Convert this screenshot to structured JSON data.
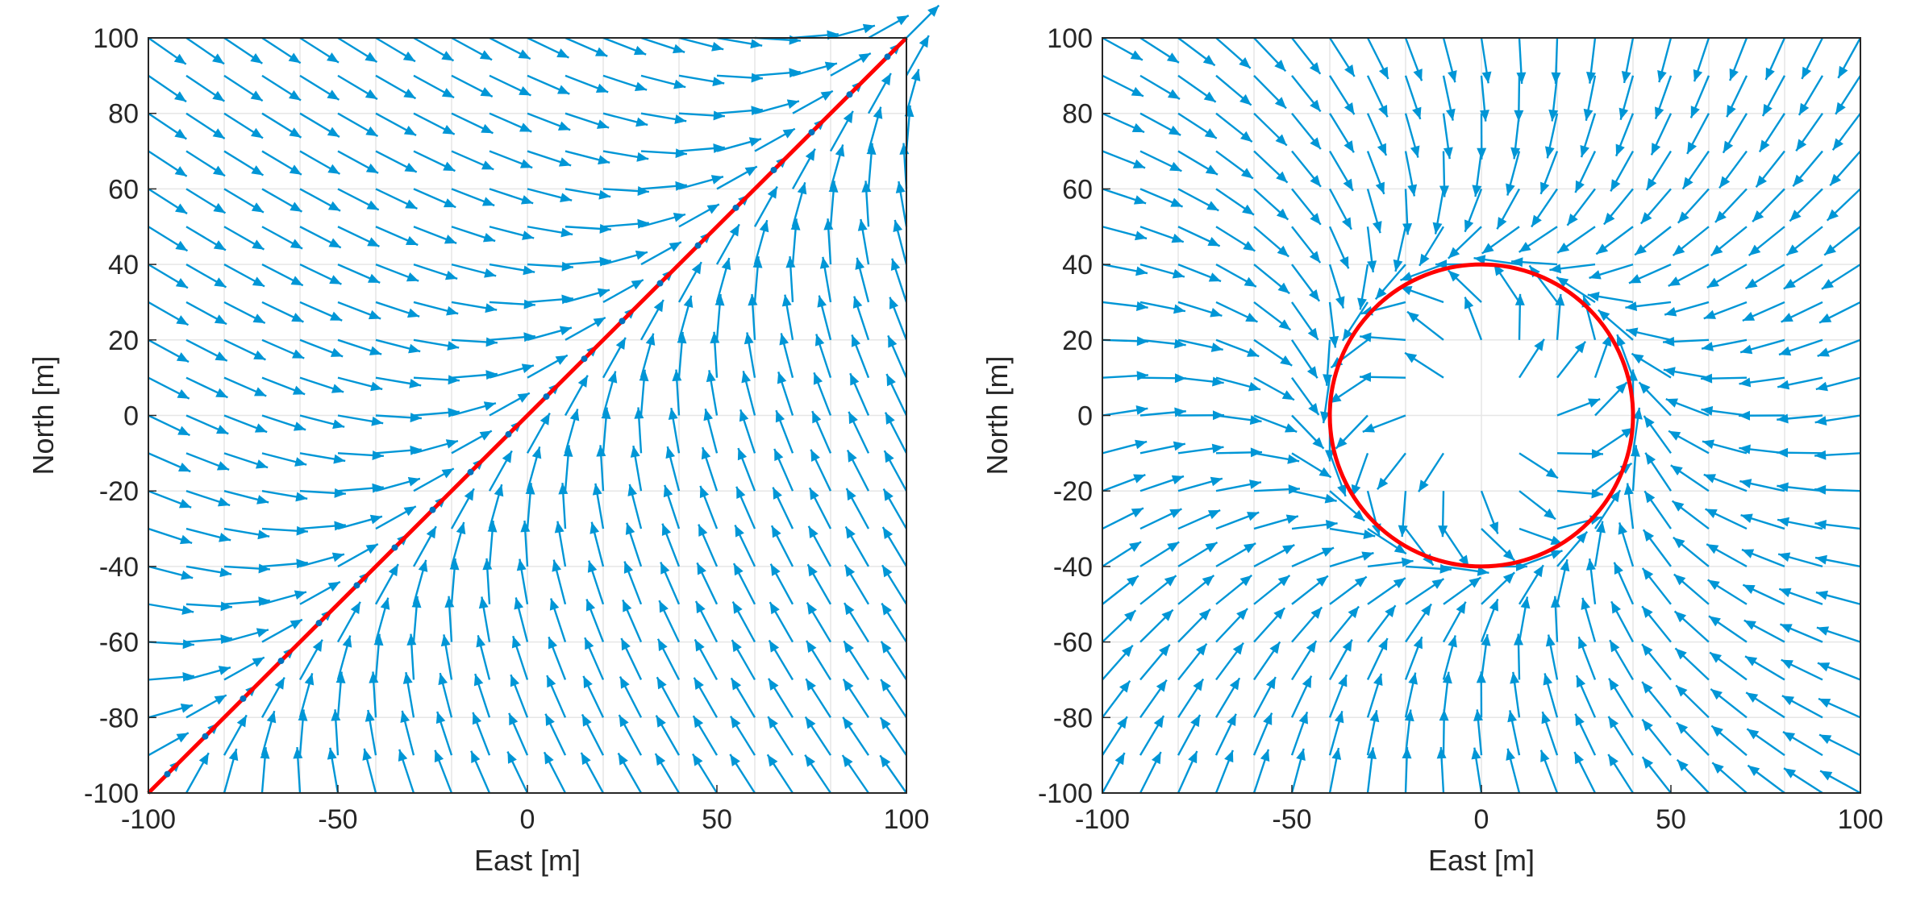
{
  "chart_data": [
    {
      "type": "quiver",
      "field": "straight-line vector field",
      "path": {
        "type": "line",
        "points": [
          [
            -100,
            -100
          ],
          [
            100,
            100
          ]
        ],
        "color": "#ff0000"
      },
      "path_markers": {
        "description": "small markers along the path",
        "step": 10,
        "color": "#0072bd"
      },
      "xlabel": "East [m]",
      "ylabel": "North [m]",
      "xlim": [
        -100,
        100
      ],
      "ylim": [
        -100,
        100
      ],
      "xticks": [
        -100,
        -50,
        0,
        50,
        100
      ],
      "yticks": [
        -100,
        -80,
        -60,
        -40,
        -20,
        0,
        20,
        40,
        60,
        80,
        100
      ],
      "grid": true,
      "arrow_grid_step": 10,
      "arrow_color": "#0096d6"
    },
    {
      "type": "quiver",
      "field": "circular path vector field",
      "path": {
        "type": "circle",
        "center": [
          0,
          0
        ],
        "radius": 40,
        "color": "#ff0000"
      },
      "xlabel": "East [m]",
      "ylabel": "North [m]",
      "xlim": [
        -100,
        100
      ],
      "ylim": [
        -100,
        100
      ],
      "xticks": [
        -100,
        -50,
        0,
        50,
        100
      ],
      "yticks": [
        -100,
        -80,
        -60,
        -40,
        -20,
        0,
        20,
        40,
        60,
        80,
        100
      ],
      "grid": true,
      "arrow_grid_step": 10,
      "arrow_color": "#0096d6"
    }
  ]
}
